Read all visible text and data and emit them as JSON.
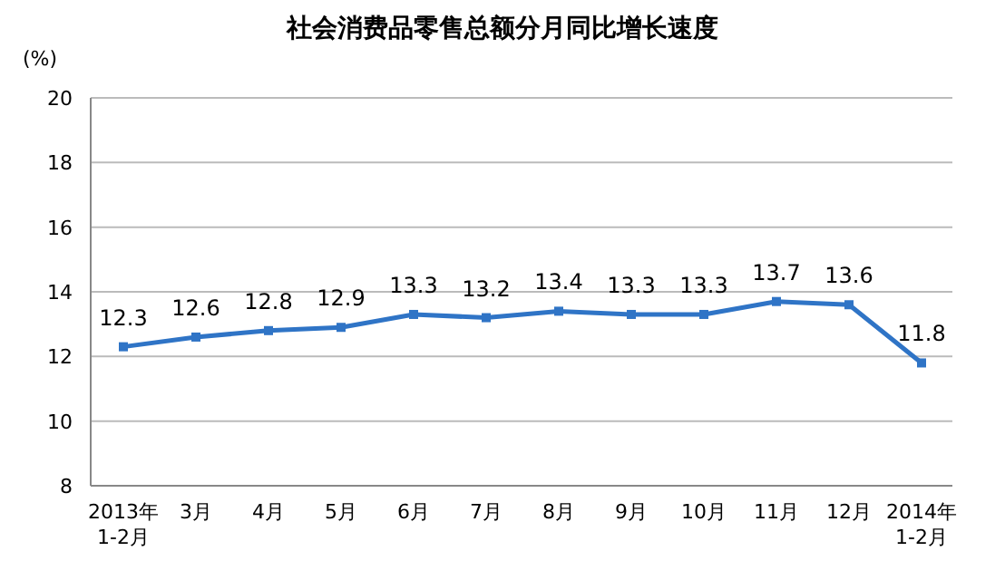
{
  "chart_data": {
    "type": "line",
    "title": "社会消费品零售总额分月同比增长速度",
    "ylabel": "(%)",
    "categories": [
      "2013年\n1-2月",
      "3月",
      "4月",
      "5月",
      "6月",
      "7月",
      "8月",
      "9月",
      "10月",
      "11月",
      "12月",
      "2014年\n1-2月"
    ],
    "series": [
      {
        "color": "#2f74c6",
        "values": [
          12.3,
          12.6,
          12.8,
          12.9,
          13.3,
          13.2,
          13.4,
          13.3,
          13.3,
          13.7,
          13.6,
          11.8
        ]
      }
    ],
    "ylim": [
      8,
      20
    ],
    "yticks": [
      8,
      10,
      12,
      14,
      16,
      18,
      20
    ],
    "grid": "y",
    "marker": "square",
    "line_style": "solid",
    "data_labels": true
  }
}
